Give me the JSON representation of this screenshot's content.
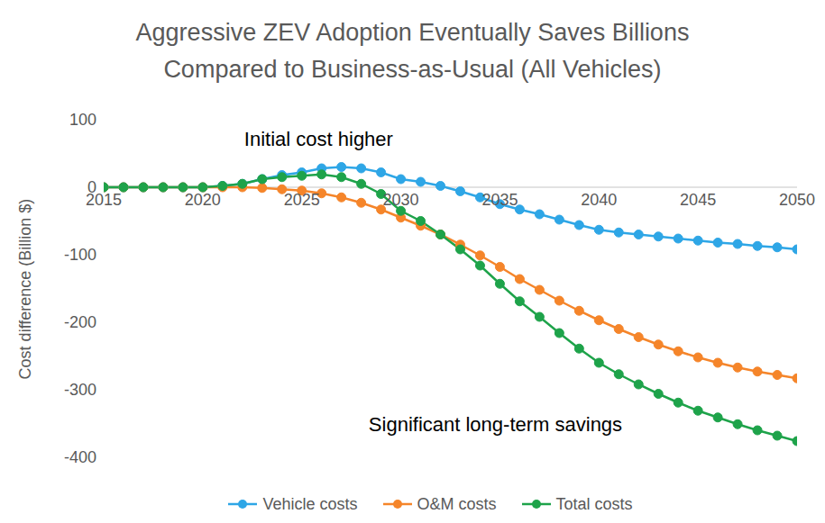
{
  "chart_data": {
    "type": "line",
    "title": "Aggressive ZEV Adoption Eventually Saves Billions\nCompared to Business-as-Usual (All Vehicles)",
    "y_label": "Cost difference (Billion $)",
    "annotations": [
      "Initial cost higher",
      "Significant long-term savings"
    ],
    "x": [
      2015,
      2016,
      2017,
      2018,
      2019,
      2020,
      2021,
      2022,
      2023,
      2024,
      2025,
      2026,
      2027,
      2028,
      2029,
      2030,
      2031,
      2032,
      2033,
      2034,
      2035,
      2036,
      2037,
      2038,
      2039,
      2040,
      2041,
      2042,
      2043,
      2044,
      2045,
      2046,
      2047,
      2048,
      2049,
      2050
    ],
    "series": [
      {
        "name": "Vehicle costs",
        "color": "#2ea6e6",
        "marker": "circle",
        "values": [
          0,
          0,
          0,
          0,
          0,
          0,
          2,
          5,
          12,
          18,
          22,
          28,
          30,
          28,
          22,
          12,
          8,
          2,
          -6,
          -15,
          -25,
          -33,
          -40,
          -48,
          -56,
          -63,
          -67,
          -70,
          -73,
          -76,
          -79,
          -82,
          -84,
          -87,
          -89,
          -92
        ]
      },
      {
        "name": "O&M costs",
        "color": "#f5852a",
        "marker": "circle",
        "values": [
          0,
          0,
          0,
          0,
          0,
          0,
          0,
          0,
          -1,
          -3,
          -5,
          -9,
          -15,
          -23,
          -33,
          -45,
          -57,
          -70,
          -85,
          -101,
          -118,
          -136,
          -152,
          -168,
          -183,
          -197,
          -210,
          -222,
          -233,
          -243,
          -252,
          -260,
          -267,
          -273,
          -278,
          -283
        ]
      },
      {
        "name": "Total costs",
        "color": "#1ea34a",
        "marker": "circle",
        "values": [
          0,
          0,
          0,
          0,
          0,
          0,
          2,
          5,
          12,
          15,
          17,
          19,
          15,
          5,
          -10,
          -35,
          -50,
          -70,
          -92,
          -116,
          -143,
          -169,
          -192,
          -216,
          -239,
          -260,
          -277,
          -292,
          -306,
          -319,
          -331,
          -341,
          -351,
          -360,
          -368,
          -376
        ]
      }
    ],
    "xlim": [
      2015,
      2050
    ],
    "xticks": [
      2015,
      2020,
      2025,
      2030,
      2035,
      2040,
      2045,
      2050
    ],
    "ylim": [
      -400,
      100
    ],
    "yticks": [
      -400,
      -300,
      -200,
      -100,
      0,
      100
    ],
    "grid": false,
    "legend": "bottom"
  }
}
